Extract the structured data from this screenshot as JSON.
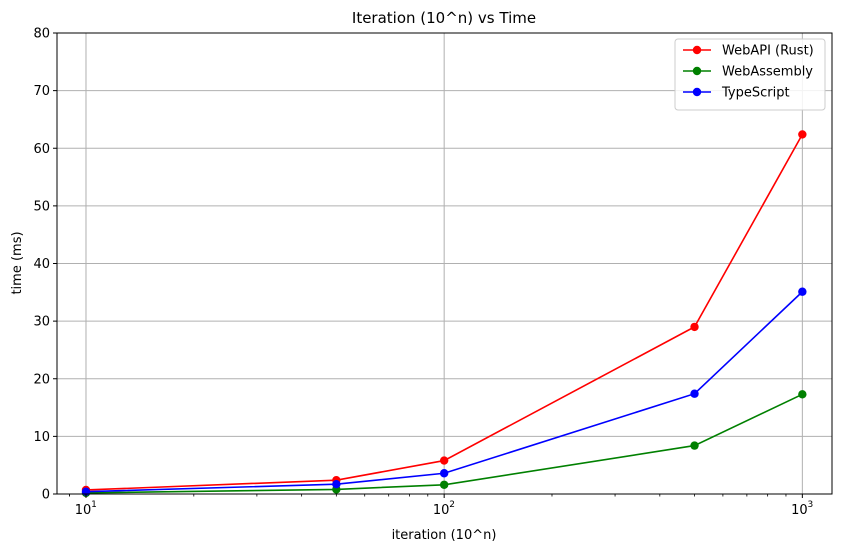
{
  "chart_data": {
    "type": "line",
    "title": "Iteration (10^n) vs Time",
    "xlabel": "iteration (10^n)",
    "ylabel": "time (ms)",
    "xscale": "log",
    "xlim": [
      8.3,
      1210
    ],
    "ylim": [
      0,
      80
    ],
    "xtick_labels": [
      "10",
      "10",
      "10"
    ],
    "xtick_exponents": [
      "1",
      "2",
      "3"
    ],
    "xtick_values": [
      10,
      100,
      1000
    ],
    "ytick_values": [
      0,
      10,
      20,
      30,
      40,
      50,
      60,
      70,
      80
    ],
    "ytick_labels": [
      "0",
      "10",
      "20",
      "30",
      "40",
      "50",
      "60",
      "70",
      "80"
    ],
    "grid": true,
    "legend_position": "top-right",
    "x": [
      10,
      50,
      100,
      500,
      1000
    ],
    "series": [
      {
        "name": "WebAPI (Rust)",
        "color": "#ff0000",
        "values": [
          0.7,
          2.4,
          5.8,
          29.0,
          62.4
        ]
      },
      {
        "name": "WebAssembly",
        "color": "#008000",
        "values": [
          0.2,
          0.8,
          1.6,
          8.4,
          17.3
        ]
      },
      {
        "name": "TypeScript",
        "color": "#0000ff",
        "values": [
          0.4,
          1.7,
          3.6,
          17.4,
          35.1
        ]
      }
    ]
  }
}
